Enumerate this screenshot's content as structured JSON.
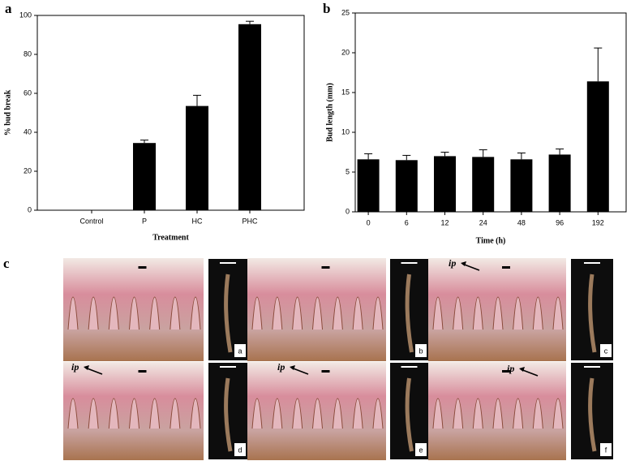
{
  "chart_data": [
    {
      "type": "bar",
      "panel": "a",
      "categories": [
        "Control",
        "P",
        "HC",
        "PHC"
      ],
      "values": [
        0,
        34.5,
        53.5,
        95.5
      ],
      "errors": [
        0,
        1.5,
        5.5,
        1.5
      ],
      "color": "#000000",
      "ylabel": "% bud break",
      "xlabel": "Treatment",
      "ylim": [
        0,
        100
      ],
      "yticks": [
        0,
        20,
        40,
        60,
        80,
        100
      ]
    },
    {
      "type": "bar",
      "panel": "b",
      "categories": [
        "0",
        "6",
        "12",
        "24",
        "48",
        "96",
        "192"
      ],
      "values": [
        6.6,
        6.5,
        7.0,
        6.9,
        6.6,
        7.2,
        16.4
      ],
      "errors": [
        0.7,
        0.6,
        0.5,
        0.9,
        0.8,
        0.7,
        4.2
      ],
      "color": "#000000",
      "ylabel": "Bud length (mm)",
      "xlabel": "Time (h)",
      "ylim": [
        0,
        25
      ],
      "yticks": [
        0,
        5,
        10,
        15,
        20,
        25
      ]
    }
  ],
  "figure_c": {
    "panel": "c",
    "images": [
      {
        "label": "a"
      },
      {
        "label": "b"
      },
      {
        "label": "c",
        "annotation": "ip"
      },
      {
        "label": "d",
        "annotation": "ip"
      },
      {
        "label": "e",
        "annotation": "ip"
      },
      {
        "label": "f",
        "annotation": "ip"
      }
    ]
  }
}
